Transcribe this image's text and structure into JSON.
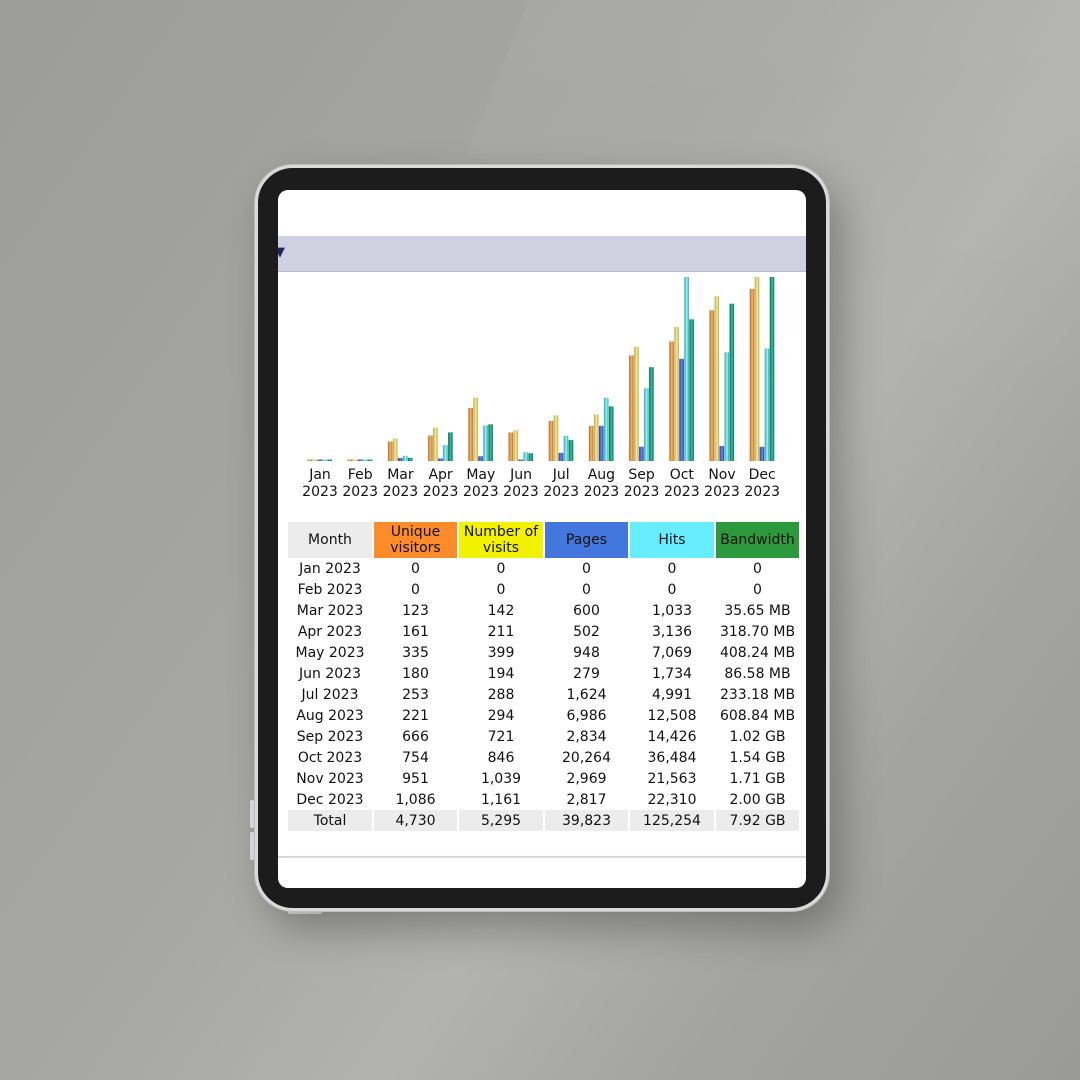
{
  "colors": {
    "unique": "#ff8c2a",
    "visits": "#f2f200",
    "pages": "#4477dd",
    "hits": "#66eeff",
    "bandwidth": "#2c9a3c",
    "month_header": "#ececec",
    "total_row": "#ececec"
  },
  "table": {
    "headers": {
      "month": "Month",
      "unique_line1": "Unique",
      "unique_line2": "visitors",
      "visits_line1": "Number of",
      "visits_line2": "visits",
      "pages": "Pages",
      "hits": "Hits",
      "bandwidth": "Bandwidth"
    },
    "rows": [
      {
        "month": "Jan 2023",
        "unique": "0",
        "visits": "0",
        "pages": "0",
        "hits": "0",
        "bandwidth": "0"
      },
      {
        "month": "Feb 2023",
        "unique": "0",
        "visits": "0",
        "pages": "0",
        "hits": "0",
        "bandwidth": "0"
      },
      {
        "month": "Mar 2023",
        "unique": "123",
        "visits": "142",
        "pages": "600",
        "hits": "1,033",
        "bandwidth": "35.65 MB"
      },
      {
        "month": "Apr 2023",
        "unique": "161",
        "visits": "211",
        "pages": "502",
        "hits": "3,136",
        "bandwidth": "318.70 MB"
      },
      {
        "month": "May 2023",
        "unique": "335",
        "visits": "399",
        "pages": "948",
        "hits": "7,069",
        "bandwidth": "408.24 MB"
      },
      {
        "month": "Jun 2023",
        "unique": "180",
        "visits": "194",
        "pages": "279",
        "hits": "1,734",
        "bandwidth": "86.58 MB"
      },
      {
        "month": "Jul 2023",
        "unique": "253",
        "visits": "288",
        "pages": "1,624",
        "hits": "4,991",
        "bandwidth": "233.18 MB"
      },
      {
        "month": "Aug 2023",
        "unique": "221",
        "visits": "294",
        "pages": "6,986",
        "hits": "12,508",
        "bandwidth": "608.84 MB"
      },
      {
        "month": "Sep 2023",
        "unique": "666",
        "visits": "721",
        "pages": "2,834",
        "hits": "14,426",
        "bandwidth": "1.02 GB"
      },
      {
        "month": "Oct 2023",
        "unique": "754",
        "visits": "846",
        "pages": "20,264",
        "hits": "36,484",
        "bandwidth": "1.54 GB"
      },
      {
        "month": "Nov 2023",
        "unique": "951",
        "visits": "1,039",
        "pages": "2,969",
        "hits": "21,563",
        "bandwidth": "1.71 GB"
      },
      {
        "month": "Dec 2023",
        "unique": "1,086",
        "visits": "1,161",
        "pages": "2,817",
        "hits": "22,310",
        "bandwidth": "2.00 GB"
      }
    ],
    "total": {
      "label": "Total",
      "unique": "4,730",
      "visits": "5,295",
      "pages": "39,823",
      "hits": "125,254",
      "bandwidth": "7.92 GB"
    }
  },
  "chart_data": {
    "type": "bar",
    "categories": [
      [
        "Jan",
        "2023"
      ],
      [
        "Feb",
        "2023"
      ],
      [
        "Mar",
        "2023"
      ],
      [
        "Apr",
        "2023"
      ],
      [
        "May",
        "2023"
      ],
      [
        "Jun",
        "2023"
      ],
      [
        "Jul",
        "2023"
      ],
      [
        "Aug",
        "2023"
      ],
      [
        "Sep",
        "2023"
      ],
      [
        "Oct",
        "2023"
      ],
      [
        "Nov",
        "2023"
      ],
      [
        "Dec",
        "2023"
      ]
    ],
    "series": [
      {
        "key": "unique",
        "values": [
          0,
          0,
          123,
          161,
          335,
          180,
          253,
          221,
          666,
          754,
          951,
          1086
        ]
      },
      {
        "key": "visits",
        "values": [
          0,
          0,
          142,
          211,
          399,
          194,
          288,
          294,
          721,
          846,
          1039,
          1161
        ]
      },
      {
        "key": "pages",
        "values": [
          0,
          0,
          600,
          502,
          948,
          279,
          1624,
          6986,
          2834,
          20264,
          2969,
          2817
        ]
      },
      {
        "key": "hits",
        "values": [
          0,
          0,
          1033,
          3136,
          7069,
          1734,
          4991,
          12508,
          14426,
          36484,
          21563,
          22310
        ]
      },
      {
        "key": "bandwidth_gb",
        "values": [
          0,
          0,
          0.0348,
          0.3112,
          0.3987,
          0.0846,
          0.2277,
          0.5946,
          1.02,
          1.54,
          1.71,
          2.0
        ]
      }
    ],
    "scale_groups": [
      [
        "unique",
        "visits"
      ],
      [
        "pages",
        "hits"
      ],
      [
        "bandwidth_gb"
      ]
    ],
    "bar_colors": {
      "unique": [
        "#b86a24",
        "#f0b870"
      ],
      "visits": [
        "#bfa640",
        "#f7eba0"
      ],
      "pages": [
        "#2a3c9c",
        "#6b8ae0"
      ],
      "hits": [
        "#2aa2b0",
        "#9ff4ff"
      ],
      "bandwidth_gb": [
        "#0f6b50",
        "#2dc39c"
      ]
    }
  }
}
